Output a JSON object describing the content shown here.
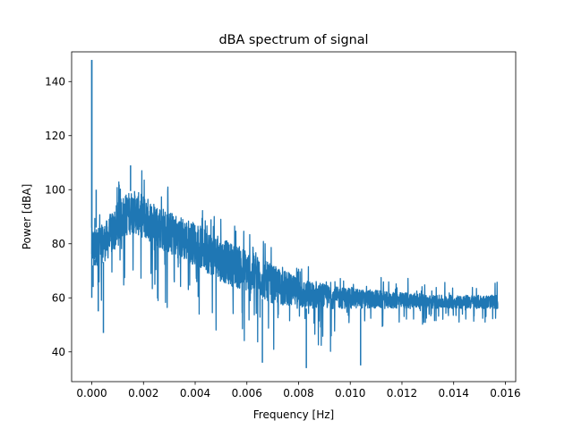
{
  "chart_data": {
    "type": "line",
    "title": "dBA spectrum of signal",
    "xlabel": "Frequency [Hz]",
    "ylabel": "Power [dBA]",
    "xlim": [
      -0.00078,
      0.0164
    ],
    "ylim": [
      29,
      151
    ],
    "xticks": [
      0.0,
      0.002,
      0.004,
      0.006,
      0.008,
      0.01,
      0.012,
      0.014,
      0.016
    ],
    "xtick_labels": [
      "0.000",
      "0.002",
      "0.004",
      "0.006",
      "0.008",
      "0.010",
      "0.012",
      "0.014",
      "0.016"
    ],
    "yticks": [
      40,
      60,
      80,
      100,
      120,
      140
    ],
    "ytick_labels": [
      "40",
      "60",
      "80",
      "100",
      "120",
      "140"
    ],
    "grid": false,
    "colors": {
      "series": "#1f77b4",
      "axes": "#000000",
      "background": "#ffffff"
    },
    "series": [
      {
        "envelope": {
          "x": [
            0.0,
            0.0002,
            0.0004,
            0.0006,
            0.0008,
            0.001,
            0.0012,
            0.0014,
            0.0016,
            0.0018,
            0.002,
            0.0025,
            0.003,
            0.0035,
            0.004,
            0.0045,
            0.005,
            0.0055,
            0.006,
            0.0065,
            0.007,
            0.0075,
            0.008,
            0.0085,
            0.009,
            0.0095,
            0.01,
            0.0105,
            0.011,
            0.0115,
            0.012,
            0.0125,
            0.013,
            0.0135,
            0.014,
            0.0145,
            0.015,
            0.0155,
            0.0157
          ],
          "max": [
            92,
            94,
            96,
            98,
            101,
            104,
            107,
            108,
            109,
            108,
            107,
            104,
            101,
            98,
            96,
            93,
            90,
            88,
            86,
            83,
            80,
            77,
            74,
            73,
            72,
            71,
            70,
            70,
            69,
            68,
            68,
            67,
            66,
            66,
            66,
            66,
            66,
            66,
            66
          ],
          "upper": [
            86,
            86,
            87,
            89,
            92,
            95,
            98,
            99,
            100,
            99,
            98,
            95,
            92,
            90,
            88,
            85,
            82,
            80,
            78,
            75,
            72,
            70,
            67,
            66,
            65,
            64,
            64,
            63,
            63,
            62,
            62,
            62,
            61,
            61,
            61,
            61,
            61,
            61,
            61
          ],
          "lower": [
            72,
            72,
            73,
            74,
            76,
            79,
            82,
            83,
            84,
            83,
            82,
            79,
            76,
            74,
            72,
            69,
            66,
            64,
            62,
            60,
            58,
            57,
            56,
            56,
            56,
            56,
            56,
            56,
            56,
            56,
            56,
            56,
            56,
            56,
            56,
            56,
            56,
            56,
            56
          ],
          "min": [
            60,
            56,
            52,
            55,
            58,
            60,
            62,
            62,
            62,
            61,
            60,
            58,
            55,
            53,
            51,
            49,
            47,
            44,
            42,
            41,
            40,
            38,
            36,
            37,
            38,
            39,
            41,
            44,
            46,
            48,
            49,
            50,
            50,
            51,
            51,
            51,
            51,
            51,
            51
          ]
        },
        "points": [
          {
            "x": 0.0,
            "y": 148
          },
          {
            "x": 5e-05,
            "y": 64
          },
          {
            "x": 8e-05,
            "y": 80
          },
          {
            "x": 0.00013,
            "y": 74
          },
          {
            "x": 0.00017,
            "y": 100
          },
          {
            "x": 0.00025,
            "y": 55
          },
          {
            "x": 0.00045,
            "y": 47
          },
          {
            "x": 0.0015,
            "y": 109
          },
          {
            "x": 0.0066,
            "y": 36
          },
          {
            "x": 0.0083,
            "y": 34
          },
          {
            "x": 0.0104,
            "y": 35
          },
          {
            "x": 0.0157,
            "y": 58
          }
        ]
      }
    ]
  }
}
